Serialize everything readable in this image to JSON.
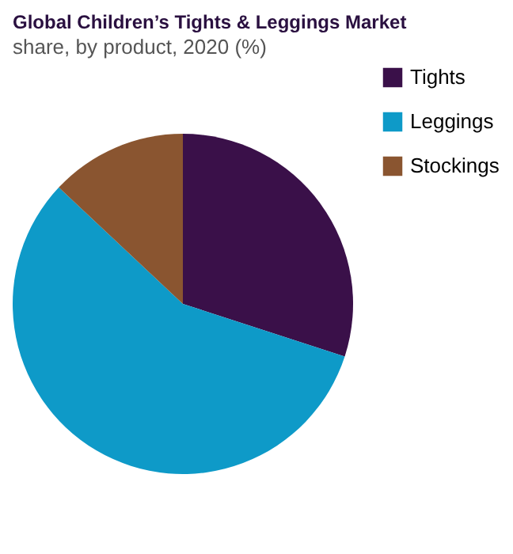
{
  "chart_data": {
    "type": "pie",
    "title": "Global Children’s Tights & Leggings Market",
    "subtitle": "share, by product, 2020 (%)",
    "categories": [
      "Tights",
      "Leggings",
      "Stockings"
    ],
    "values": [
      30,
      57,
      13
    ],
    "colors": [
      "#3a1049",
      "#0e9ac8",
      "#8a5530"
    ],
    "legend": "right"
  }
}
